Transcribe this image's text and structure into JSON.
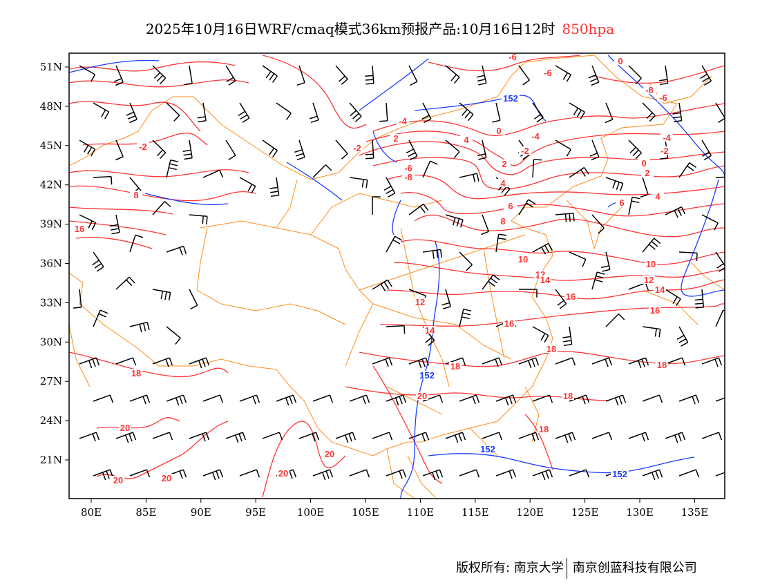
{
  "title": {
    "text": "2025年10月16日WRF/cmaq模式36km预报产品:10月16日12时",
    "level": "850hpa",
    "level_color": "#ff3333"
  },
  "axes": {
    "lat_labels": [
      "51N",
      "48N",
      "45N",
      "42N",
      "39N",
      "36N",
      "33N",
      "30N",
      "27N",
      "24N",
      "21N"
    ],
    "lon_labels": [
      "80E",
      "85E",
      "90E",
      "95E",
      "100E",
      "105E",
      "110E",
      "115E",
      "120E",
      "125E",
      "130E",
      "135E"
    ]
  },
  "temperature_contour_labels": [
    "-6",
    "-6",
    "-8",
    "-6",
    "-4",
    "0",
    "-4",
    "-2",
    "2",
    "4",
    "-2",
    "-2",
    "2",
    "-6",
    "-8",
    "4",
    "6",
    "8",
    "8",
    "16",
    "10",
    "12",
    "14",
    "16",
    "12",
    "14",
    "16",
    "18",
    "18",
    "18",
    "20",
    "18",
    "18",
    "20",
    "20",
    "20",
    "20",
    "20",
    "10",
    "12",
    "14",
    "16",
    "18",
    "6",
    "4",
    "2",
    "0",
    "-4",
    "-2",
    "0"
  ],
  "height_contour_labels": [
    "152",
    "152",
    "152",
    "152"
  ],
  "colors": {
    "temperature": "#ff3333",
    "height": "#1a3cff",
    "border": "#ff8c1a",
    "wind": "#000000"
  },
  "footer": {
    "copyright": "版权所有: 南京大学",
    "company": "南京创蓝科技有限公司"
  }
}
